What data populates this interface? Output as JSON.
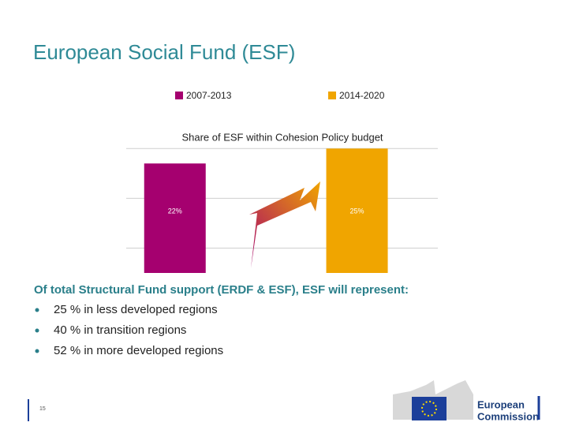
{
  "title": "European Social Fund (ESF)",
  "chart_data": {
    "type": "bar",
    "title": "Share of ESF within Cohesion Policy budget",
    "categories": [
      null
    ],
    "series": [
      {
        "name": "2007-2013",
        "color": "#a5006f",
        "values": [
          22
        ],
        "value_labels": [
          "22%"
        ]
      },
      {
        "name": "2014-2020",
        "color": "#f0a500",
        "values": [
          25
        ],
        "value_labels": [
          "25%"
        ]
      }
    ],
    "ylim": [
      0,
      26
    ],
    "yticks": [
      5,
      15,
      25
    ],
    "grid": true
  },
  "bullets": {
    "heading": "Of total Structural Fund support (ERDF & ESF), ESF will represent:",
    "items": [
      "25 % in less developed regions",
      "40 % in transition regions",
      "52 % in more developed regions"
    ]
  },
  "page_number": "15",
  "logo": [
    "European",
    "Commission"
  ]
}
